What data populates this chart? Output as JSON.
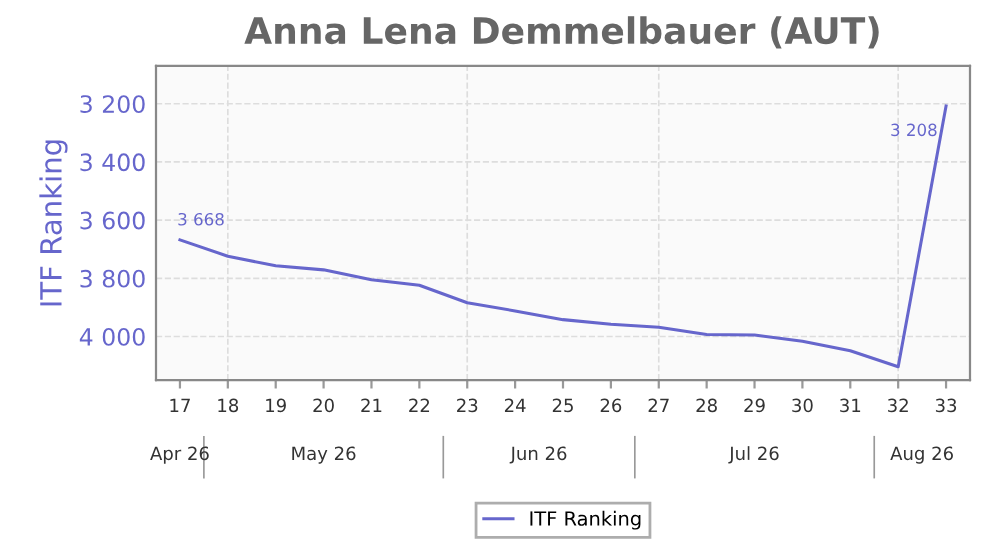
{
  "chart_data": {
    "type": "line",
    "title": "Anna Lena Demmelbauer (AUT)",
    "ylabel": "ITF Ranking",
    "categories": [
      "17",
      "18",
      "19",
      "20",
      "21",
      "22",
      "23",
      "24",
      "25",
      "26",
      "27",
      "28",
      "29",
      "30",
      "31",
      "32",
      "33"
    ],
    "series": [
      {
        "name": "ITF Ranking",
        "color": "#6666cc",
        "values": [
          3668,
          3724,
          3757,
          3771,
          3805,
          3824,
          3884,
          3912,
          3942,
          3958,
          3968,
          3993,
          3995,
          4016,
          4049,
          4104,
          3208
        ],
        "value_labels": [
          "3 668",
          null,
          null,
          null,
          null,
          null,
          null,
          null,
          null,
          null,
          null,
          null,
          null,
          null,
          null,
          null,
          "3 208"
        ]
      }
    ],
    "ylim": [
      4150,
      3070
    ],
    "yticks": [
      {
        "value": 3200,
        "label": "3 200"
      },
      {
        "value": 3400,
        "label": "3 400"
      },
      {
        "value": 3600,
        "label": "3 600"
      },
      {
        "value": 3800,
        "label": "3 800"
      },
      {
        "value": 4000,
        "label": "4 000"
      }
    ],
    "annotations": [
      "Apr 26",
      "May 26",
      "Jun 26",
      "Jul 26",
      "Aug 26"
    ],
    "grid": true,
    "legend": "bottom",
    "marker": "none",
    "line_style": "solid"
  }
}
